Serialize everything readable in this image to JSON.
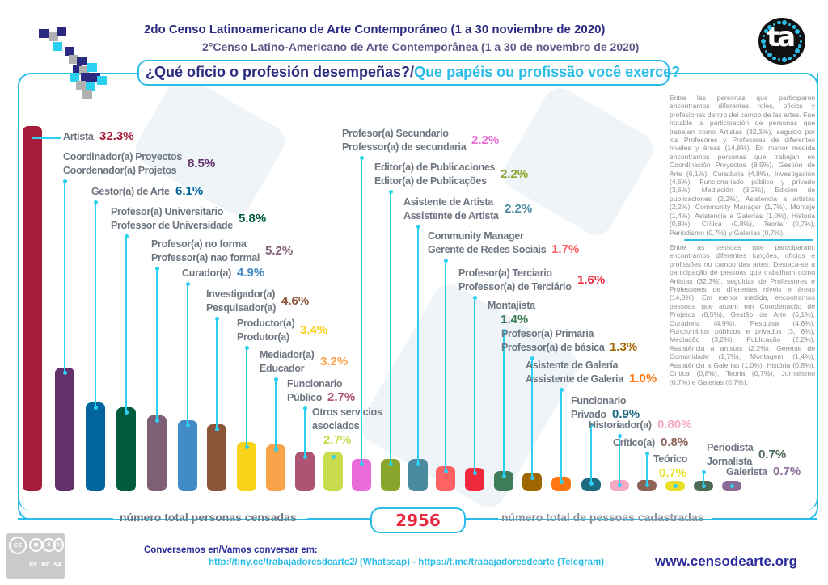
{
  "header": {
    "title_es": "2do Censo Latinoamericano de Arte Contemporáneo (1 a 30 noviembre de 2020)",
    "title_pt": "2°Censo Latino-Americano de Arte Contemporânea (1 a 30 de novembro de 2020)",
    "question_es": "¿Qué oficio o profesión desempeñas?/",
    "question_pt": "Que papéis ou profissão você exerce?",
    "logo_text": "ta"
  },
  "chart_data": {
    "type": "bar",
    "title": "¿Qué oficio o profesión desempeñas?/Que papéis ou profissão você exerce?",
    "unit": "%",
    "categories": [
      {
        "label": [
          "Artista"
        ],
        "value": 32.3,
        "text": "32.3%",
        "color": "#a51c3a"
      },
      {
        "label": [
          "Coordinador(a) Proyectos",
          "Coordenador(a) Projetos"
        ],
        "value": 8.5,
        "text": "8.5%",
        "color": "#62306a"
      },
      {
        "label": [
          "Gestor(a) de Arte"
        ],
        "value": 6.1,
        "text": "6.1%",
        "color": "#00659c"
      },
      {
        "label": [
          "Profesor(a) Universitario",
          "Professor de Universidade"
        ],
        "value": 5.8,
        "text": "5.8%",
        "color": "#005a3c"
      },
      {
        "label": [
          "Profesor(a) no forma",
          "Professor(a) nao formal"
        ],
        "value": 5.2,
        "text": "5.2%",
        "color": "#7f5f75"
      },
      {
        "label": [
          "Curador(a)"
        ],
        "value": 4.9,
        "text": "4.9%",
        "color": "#438bc6"
      },
      {
        "label": [
          "Investigador(a)",
          "Pesquisador(a)"
        ],
        "value": 4.6,
        "text": "4.6%",
        "color": "#8b553a"
      },
      {
        "label": [
          "Productor(a)",
          "Produtor(a)"
        ],
        "value": 3.4,
        "text": "3.4%",
        "color": "#f8d31a"
      },
      {
        "label": [
          "Mediador(a)",
          "Educador"
        ],
        "value": 3.2,
        "text": "3.2%",
        "color": "#f9a34a"
      },
      {
        "label": [
          "Funcionario",
          "Público"
        ],
        "value": 2.7,
        "text": "2.7%",
        "color": "#ad5374"
      },
      {
        "label": [
          "Otros servicios",
          "asociados"
        ],
        "value": 2.7,
        "text": "2.7%",
        "color": "#c9dc4d"
      },
      {
        "label": [
          "Profesor(a) Secundario",
          "Professor(a) de secundaria"
        ],
        "value": 2.2,
        "text": "2.2%",
        "color": "#e86bd7"
      },
      {
        "label": [
          "Editor(a) de Publicaciones",
          "Editor(a) de Publicações"
        ],
        "value": 2.2,
        "text": "2.2%",
        "color": "#8aa52c"
      },
      {
        "label": [
          "Asistente de Artista",
          "Assistente de Artista"
        ],
        "value": 2.2,
        "text": "2.2%",
        "color": "#4a8aa0"
      },
      {
        "label": [
          "Community Manager",
          "Gerente de Redes Sociais"
        ],
        "value": 1.7,
        "text": "1.7%",
        "color": "#ff6262"
      },
      {
        "label": [
          "Profesor(a) Terciario",
          "Professor(a) de Terciário"
        ],
        "value": 1.6,
        "text": "1.6%",
        "color": "#f0283e"
      },
      {
        "label": [
          "Montajista"
        ],
        "value": 1.4,
        "text": "1.4%",
        "color": "#3f7d5a"
      },
      {
        "label": [
          "Profesor(a)  Primaria",
          "Professor(a) de básica"
        ],
        "value": 1.3,
        "text": "1.3%",
        "color": "#a06600"
      },
      {
        "label": [
          "Asistente de Galería",
          "Assistente de Galeria"
        ],
        "value": 1.0,
        "text": "1.0%",
        "color": "#ff7510"
      },
      {
        "label": [
          "Funcionario",
          "Privado"
        ],
        "value": 0.9,
        "text": "0.9%",
        "color": "#1d6a80"
      },
      {
        "label": [
          "Historiador(a)"
        ],
        "value": 0.8,
        "text": "0.80%",
        "color": "#f7a8c4"
      },
      {
        "label": [
          "Crítico(a)"
        ],
        "value": 0.8,
        "text": "0.8%",
        "color": "#8d6358"
      },
      {
        "label": [
          "Teórico"
        ],
        "value": 0.7,
        "text": "0.7%",
        "color": "#e8e02a"
      },
      {
        "label": [
          "Periodista",
          "Jornalista"
        ],
        "value": 0.7,
        "text": "0.7%",
        "color": "#4d6a58"
      },
      {
        "label": [
          "Galerista"
        ],
        "value": 0.7,
        "text": "0.7%",
        "color": "#8a6a96"
      }
    ]
  },
  "side_text": {
    "es": "Entre las personas que participaron encontramos diferentes roles, oficios y profesiones dentro del campo de las artes. Fue notable la participación de personas que trabajan como Artistas (32,3%), seguido por los Profesores y Profesoras de diferentes niveles y áreas (14,8%). En menor medida encontramos personas que trabajan en Coordinación Proyectos (8,5%), Gestión de Arte (6,1%), Curaduría (4,9%), Investigación (4,6%), Funcionariado público y privado (3,6%), Mediación (3,2%), Edición de publicaciones (2,2%), Asistencia a artistas (2,2%), Community Manager (1,7%), Montaje (1,4%), Asistencia a Galerías (1,0%), Historia (0,8%), Crítica (0,8%), Teoría (0,7%), Periodismo (0,7%) y Galerías (0,7%).",
    "pt": "Entre as pessoas que participaram, encontramos diferentes funções, ofícios e profissões no campo das artes. Destaca-se a participação de pessoas que trabalham como Artistas (32,3%), seguidas de Professores e Professores de diferentes níveis e áreas (14,8%). Em menor medida, encontramos pessoas que atuam em Coordenação de Projetos (8,5%), Gestão de Arte (6,1%), Curadoria (4,9%), Pesquisa (4,6%), Funcionários públicos e privados (3, 6%), Mediação (3,2%), Publicação (2,2%), Assistência a artistas (2,2%), Gerente de Comunidade (1,7%), Montagem (1,4%), Assistência a Galerias (1,0%), História (0,8%), Crítica (0,8%), Teoria (0,7%), Jornalismo (0,7%) e Galerias (0,7%)."
  },
  "totals": {
    "label_es": "número total personas censadas",
    "value": "2956",
    "label_pt": "número total de pessoas cadastradas"
  },
  "footer": {
    "license_labels": [
      "BY",
      "NC",
      "SA"
    ],
    "cc_text": "cc",
    "contact_label": "Conversemos en/Vamos conversar em:",
    "links": "http://tiny.cc/trabajadoresdearte2/ (Whatssap) - https://t.me/trabajadoresdearte (Telegram)",
    "website": "www.censodearte.org"
  }
}
